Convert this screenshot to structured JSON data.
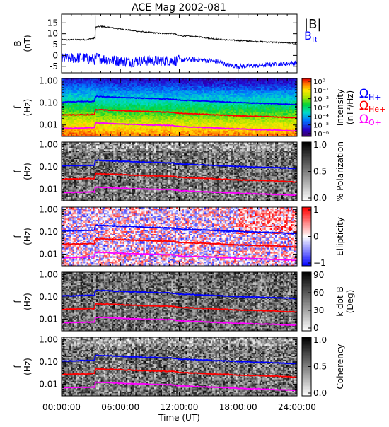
{
  "chart_data": {
    "type": "line",
    "title": "ACE Mag 2002-081",
    "xlabel": "Time (UT)",
    "x_ticks": [
      "00:00:00",
      "06:00:00",
      "12:00:00",
      "18:00:00",
      "24:00:00"
    ],
    "x_range_hours": [
      0,
      24
    ],
    "panels": [
      {
        "id": "field",
        "ylabel": "B",
        "yunit": "(nT)",
        "ylim": [
          -8,
          19
        ],
        "yticks": [
          "15",
          "10",
          "5",
          "0",
          "-5"
        ],
        "ytick_values": [
          15,
          10,
          5,
          0,
          -5
        ],
        "legend": [
          {
            "label": "|B|",
            "color": "#000000"
          },
          {
            "label": "B",
            "sub": "R",
            "color": "#0000ff"
          }
        ],
        "series": [
          {
            "name": "|B|",
            "color": "#000000",
            "x": [
              0,
              2.5,
              3.4,
              3.45,
              4,
              6,
              8,
              10,
              11.3,
              12,
              14,
              16,
              18,
              20,
              22,
              24
            ],
            "y": [
              7.2,
              7.3,
              8,
              13,
              13.4,
              12.2,
              11,
              10.2,
              10.2,
              9.1,
              8.6,
              7.4,
              6.9,
              6.4,
              6.0,
              5.7
            ]
          },
          {
            "name": "B_R",
            "color": "#0000ff",
            "x": [
              0,
              2,
              3.4,
              3.6,
              5,
              7,
              9,
              11,
              12,
              14,
              16,
              17,
              18,
              20,
              22,
              24
            ],
            "y": [
              -1.5,
              -1,
              -2,
              -1,
              -2.2,
              -2.8,
              -2.3,
              -2.5,
              -2.2,
              -1.9,
              -2.8,
              -4.5,
              -5,
              -4.6,
              -4,
              -3.4
            ]
          }
        ]
      },
      {
        "id": "intensity",
        "ylabel": "f",
        "yunit": "(Hz)",
        "yscale": "log",
        "ylim": [
          0.003,
          1.3
        ],
        "yticks": [
          "1.00",
          "0.10",
          "0.01"
        ],
        "ytick_values": [
          1,
          0.1,
          0.01
        ],
        "colorbar": {
          "label": "Intensity",
          "unit": "(nT²/Hz)",
          "scale": "rainbow",
          "ticks": [
            "10⁰",
            "10⁻¹",
            "10⁻²",
            "10⁻³",
            "10⁻⁴",
            "10⁻⁵",
            "10⁻⁶"
          ]
        }
      },
      {
        "id": "polarization",
        "ylabel": "f",
        "yunit": "(Hz)",
        "yscale": "log",
        "ylim": [
          0.003,
          1.3
        ],
        "yticks": [
          "1.00",
          "0.10",
          "0.01"
        ],
        "ytick_values": [
          1,
          0.1,
          0.01
        ],
        "colorbar": {
          "label": "% Polarization",
          "unit": "",
          "scale": "gray",
          "ticks": [
            "1.0",
            "0.5",
            "0.0"
          ]
        }
      },
      {
        "id": "ellipticity",
        "ylabel": "f",
        "yunit": "(Hz)",
        "yscale": "log",
        "ylim": [
          0.003,
          1.3
        ],
        "yticks": [
          "1.00",
          "0.10",
          "0.01"
        ],
        "ytick_values": [
          1,
          0.1,
          0.01
        ],
        "colorbar": {
          "label": "Ellipticity",
          "unit": "",
          "scale": "bwr",
          "ticks": [
            "1",
            "0",
            "−1"
          ]
        }
      },
      {
        "id": "kdotb",
        "ylabel": "f",
        "yunit": "(Hz)",
        "yscale": "log",
        "ylim": [
          0.003,
          1.3
        ],
        "yticks": [
          "1.00",
          "0.10",
          "0.01"
        ],
        "ytick_values": [
          1,
          0.1,
          0.01
        ],
        "colorbar": {
          "label": "k dot B",
          "unit": "(Deg)",
          "scale": "gray",
          "ticks": [
            "90",
            "60",
            "30",
            "0"
          ]
        }
      },
      {
        "id": "coherency",
        "ylabel": "f",
        "yunit": "(Hz)",
        "yscale": "log",
        "ylim": [
          0.003,
          1.3
        ],
        "yticks": [
          "1.00",
          "0.10",
          "0.01"
        ],
        "ytick_values": [
          1,
          0.1,
          0.01
        ],
        "colorbar": {
          "label": "Coherency",
          "unit": "",
          "scale": "gray",
          "ticks": [
            "1.0",
            "0.5",
            "0.0"
          ]
        }
      }
    ],
    "gyrofrequency_legend": [
      {
        "symbol": "Ω",
        "sub": "H+",
        "color": "#0000ff"
      },
      {
        "symbol": "Ω",
        "sub": "He+",
        "color": "#ff0000"
      },
      {
        "symbol": "Ω",
        "sub": "O+",
        "color": "#ff00ff"
      }
    ],
    "gyrofrequency_lines": [
      {
        "name": "H+",
        "color": "#0000ff",
        "x": [
          0,
          3.4,
          3.45,
          6,
          9,
          11.3,
          12,
          15,
          18,
          21,
          24
        ],
        "y": [
          0.11,
          0.12,
          0.2,
          0.18,
          0.16,
          0.15,
          0.135,
          0.12,
          0.105,
          0.095,
          0.085
        ]
      },
      {
        "name": "He+",
        "color": "#ff0000",
        "x": [
          0,
          3.4,
          3.45,
          6,
          9,
          11.3,
          12,
          15,
          18,
          21,
          24
        ],
        "y": [
          0.028,
          0.03,
          0.05,
          0.045,
          0.04,
          0.038,
          0.034,
          0.03,
          0.026,
          0.024,
          0.021
        ]
      },
      {
        "name": "O+",
        "color": "#ff00ff",
        "x": [
          0,
          3.4,
          3.45,
          6,
          9,
          11.3,
          12,
          15,
          18,
          21,
          24
        ],
        "y": [
          0.007,
          0.0075,
          0.0125,
          0.011,
          0.01,
          0.0095,
          0.0085,
          0.0075,
          0.0066,
          0.006,
          0.0053
        ]
      }
    ]
  }
}
